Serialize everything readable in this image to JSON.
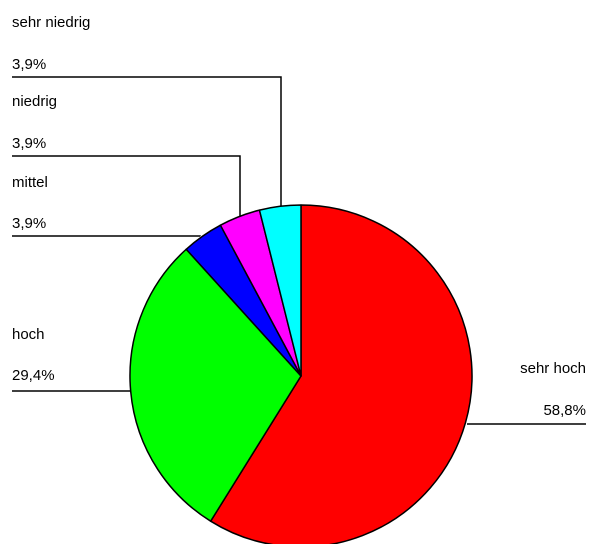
{
  "chart_data": {
    "type": "pie",
    "title": "",
    "start_position": "top",
    "direction": "clockwise",
    "slices": [
      {
        "label": "sehr hoch",
        "value": 58.8,
        "value_label": "58,8%",
        "color": "#ff0000"
      },
      {
        "label": "hoch",
        "value": 29.4,
        "value_label": "29,4%",
        "color": "#00ff00"
      },
      {
        "label": "mittel",
        "value": 3.9,
        "value_label": "3,9%",
        "color": "#0000ff"
      },
      {
        "label": "niedrig",
        "value": 3.9,
        "value_label": "3,9%",
        "color": "#ff00ff"
      },
      {
        "label": "sehr niedrig",
        "value": 3.9,
        "value_label": "3,9%",
        "color": "#00ffff"
      }
    ]
  }
}
